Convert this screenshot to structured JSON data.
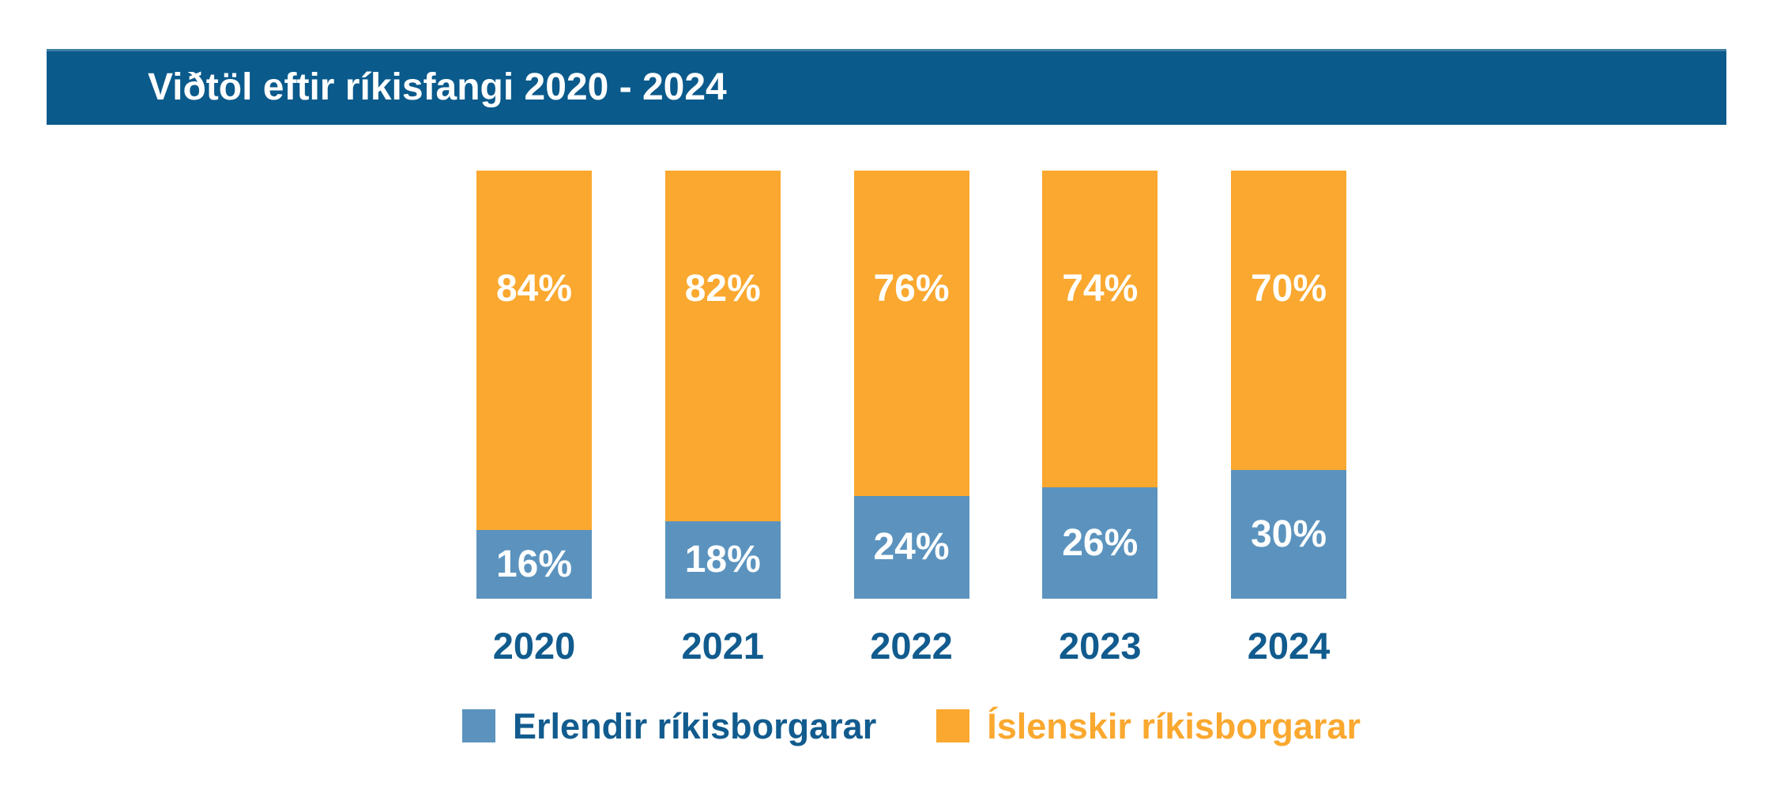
{
  "header": {
    "title": "Viðtöl eftir ríkisfangi 2020 - 2024"
  },
  "colors": {
    "background": "#ffffff",
    "banner": "#0a5a8c",
    "banner_top_edge": "#3d7ea6",
    "foreign_blue": "#5b93be",
    "icelandic_orange": "#faa82f",
    "value_label_text": "#ffffff",
    "year_label_text": "#115b8e"
  },
  "chart_data": {
    "type": "bar",
    "stacked": true,
    "orientation": "vertical",
    "title": "Viðtöl eftir ríkisfangi 2020 - 2024",
    "categories": [
      "2020",
      "2021",
      "2022",
      "2023",
      "2024"
    ],
    "series": [
      {
        "name": "Erlendir ríkisborgarar",
        "color": "#5b93be",
        "position": "bottom",
        "values": [
          16,
          18,
          24,
          26,
          30
        ],
        "labels": [
          "16%",
          "18%",
          "24%",
          "26%",
          "30%"
        ]
      },
      {
        "name": "Íslenskir ríkisborgarar",
        "color": "#faa82f",
        "position": "top",
        "values": [
          84,
          82,
          76,
          74,
          70
        ],
        "labels": [
          "84%",
          "82%",
          "76%",
          "74%",
          "70%"
        ]
      }
    ],
    "ylim": [
      0,
      100
    ],
    "unit": "%",
    "grid": false,
    "axes_visible": false,
    "value_labels_inside_bars": true,
    "legend_position": "bottom"
  },
  "legend": {
    "items": [
      {
        "label": "Erlendir ríkisborgarar",
        "swatch_color": "#5b93be",
        "text_color": "#115b8e"
      },
      {
        "label": "Íslenskir ríkisborgarar",
        "swatch_color": "#faa82f",
        "text_color": "#faa82f"
      }
    ]
  }
}
